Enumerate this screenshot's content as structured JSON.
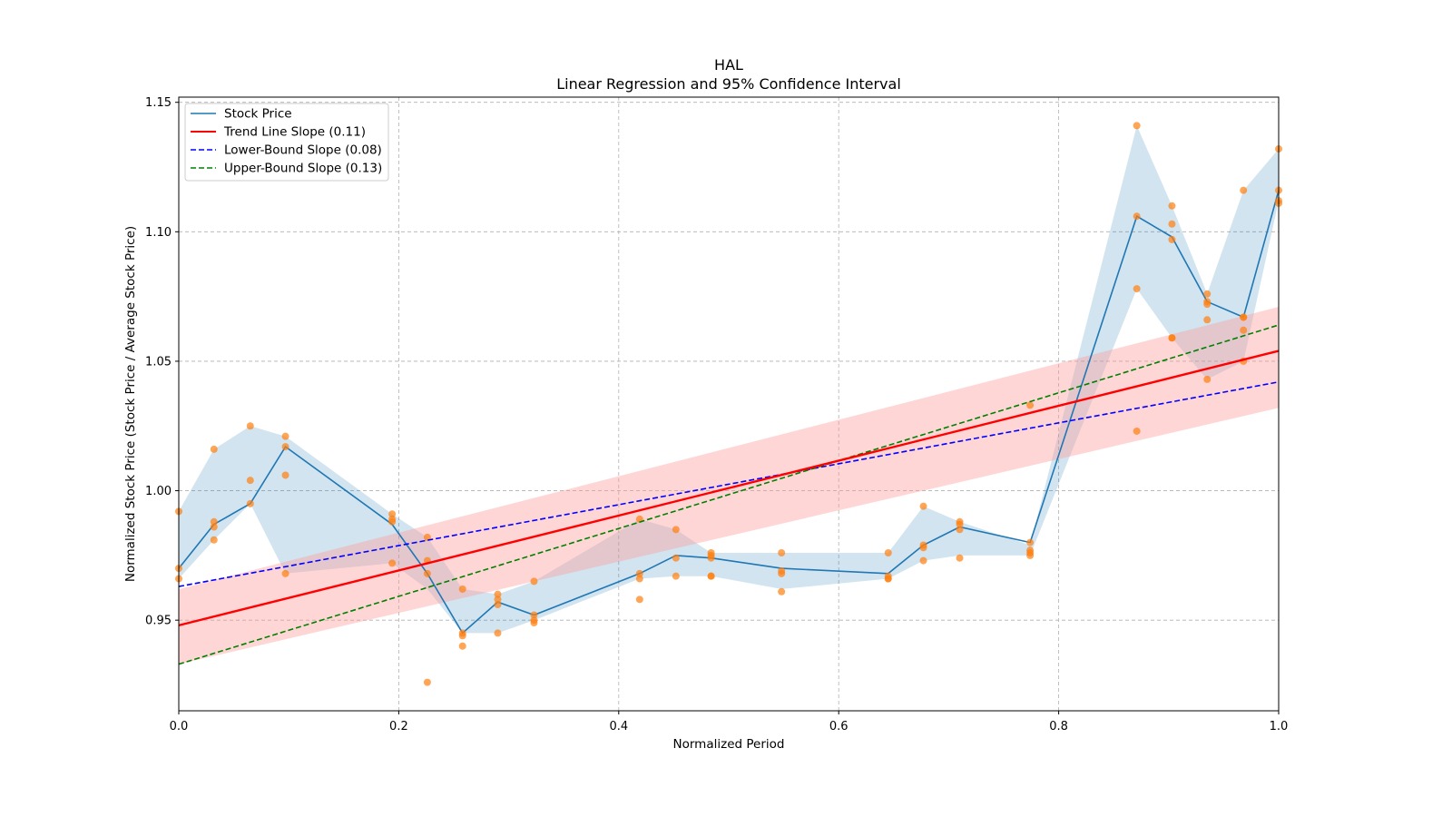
{
  "chart_data": {
    "type": "line",
    "title": "HAL",
    "subtitle": "Linear Regression and 95% Confidence Interval",
    "xlabel": "Normalized Period",
    "ylabel": "Normalized Stock Price (Stock Price / Average Stock Price)",
    "xlim": [
      0,
      1
    ],
    "ylim": [
      0.915,
      1.152
    ],
    "xticks": [
      0,
      0.2,
      0.4,
      0.6,
      0.8,
      1.0
    ],
    "xtick_labels": [
      "0.0",
      "0.2",
      "0.4",
      "0.6",
      "0.8",
      "1.0"
    ],
    "yticks": [
      0.95,
      1.0,
      1.05,
      1.1,
      1.15
    ],
    "ytick_labels": [
      "0.95",
      "1.00",
      "1.05",
      "1.10",
      "1.15"
    ],
    "grid": true,
    "legend_position": "top-left",
    "legend": [
      {
        "label": "Stock Price",
        "color": "#1f77b4",
        "style": "solid"
      },
      {
        "label": "Trend Line Slope (0.11)",
        "color": "#ff0000",
        "style": "solid"
      },
      {
        "label": "Lower-Bound Slope (0.08)",
        "color": "#0000ff",
        "style": "dashed"
      },
      {
        "label": "Upper-Bound Slope (0.13)",
        "color": "#008000",
        "style": "dashed"
      }
    ],
    "stock_price": {
      "x": [
        0.0,
        0.032,
        0.065,
        0.097,
        0.194,
        0.226,
        0.258,
        0.29,
        0.323,
        0.419,
        0.452,
        0.484,
        0.548,
        0.645,
        0.677,
        0.71,
        0.774,
        0.871,
        0.903,
        0.935,
        0.968,
        1.0
      ],
      "y": [
        0.97,
        0.987,
        0.995,
        1.017,
        0.987,
        0.968,
        0.945,
        0.957,
        0.952,
        0.968,
        0.975,
        0.974,
        0.97,
        0.968,
        0.979,
        0.986,
        0.98,
        1.106,
        1.098,
        1.073,
        1.067,
        1.116
      ],
      "band_lower": [
        0.966,
        0.981,
        0.995,
        0.968,
        0.972,
        0.962,
        0.945,
        0.945,
        0.95,
        0.966,
        0.967,
        0.967,
        0.962,
        0.966,
        0.973,
        0.975,
        0.975,
        1.078,
        1.059,
        1.043,
        1.05,
        1.112
      ],
      "band_upper": [
        0.992,
        1.016,
        1.025,
        1.021,
        0.991,
        0.982,
        0.962,
        0.96,
        0.965,
        0.989,
        0.985,
        0.976,
        0.976,
        0.976,
        0.994,
        0.988,
        0.979,
        1.141,
        1.11,
        1.076,
        1.116,
        1.132
      ],
      "color": "#1f77b4",
      "band_color": "#1f77b4"
    },
    "observations": {
      "x": [
        0.0,
        0.0,
        0.0,
        0.032,
        0.032,
        0.032,
        0.032,
        0.065,
        0.065,
        0.065,
        0.097,
        0.097,
        0.097,
        0.097,
        0.194,
        0.194,
        0.194,
        0.194,
        0.226,
        0.226,
        0.226,
        0.226,
        0.258,
        0.258,
        0.258,
        0.258,
        0.29,
        0.29,
        0.29,
        0.29,
        0.323,
        0.323,
        0.323,
        0.323,
        0.419,
        0.419,
        0.419,
        0.419,
        0.452,
        0.452,
        0.452,
        0.484,
        0.484,
        0.484,
        0.484,
        0.484,
        0.548,
        0.548,
        0.548,
        0.548,
        0.645,
        0.645,
        0.645,
        0.645,
        0.677,
        0.677,
        0.677,
        0.677,
        0.71,
        0.71,
        0.71,
        0.71,
        0.774,
        0.774,
        0.774,
        0.774,
        0.774,
        0.871,
        0.871,
        0.871,
        0.871,
        0.903,
        0.903,
        0.903,
        0.903,
        0.903,
        0.935,
        0.935,
        0.935,
        0.935,
        0.935,
        0.968,
        0.968,
        0.968,
        0.968,
        0.968,
        1.0,
        1.0,
        1.0,
        1.0
      ],
      "y": [
        0.992,
        0.97,
        0.966,
        1.016,
        0.988,
        0.986,
        0.981,
        1.025,
        1.004,
        0.995,
        1.021,
        1.017,
        1.006,
        0.968,
        0.991,
        0.989,
        0.988,
        0.972,
        0.982,
        0.973,
        0.968,
        0.926,
        0.962,
        0.945,
        0.944,
        0.94,
        0.96,
        0.958,
        0.956,
        0.945,
        0.965,
        0.952,
        0.95,
        0.949,
        0.989,
        0.968,
        0.966,
        0.958,
        0.985,
        0.974,
        0.967,
        0.976,
        0.975,
        0.974,
        0.967,
        0.967,
        0.976,
        0.969,
        0.968,
        0.961,
        0.976,
        0.967,
        0.966,
        0.966,
        0.994,
        0.979,
        0.978,
        0.973,
        0.988,
        0.987,
        0.985,
        0.974,
        1.033,
        0.98,
        0.977,
        0.976,
        0.975,
        1.141,
        1.106,
        1.078,
        1.023,
        1.11,
        1.103,
        1.097,
        1.059,
        1.059,
        1.076,
        1.073,
        1.072,
        1.066,
        1.043,
        1.116,
        1.067,
        1.067,
        1.062,
        1.05,
        1.132,
        1.116,
        1.112,
        1.111
      ],
      "color": "#ff7f0e"
    },
    "trend_line": {
      "x": [
        0,
        1
      ],
      "y": [
        0.948,
        1.054
      ],
      "color": "#ff0000"
    },
    "trend_band": {
      "x": [
        0,
        1
      ],
      "lower": [
        0.933,
        1.032
      ],
      "upper": [
        0.962,
        1.071
      ],
      "color": "#ff9999"
    },
    "lower_bound_line": {
      "x": [
        0,
        1
      ],
      "y": [
        0.963,
        1.042
      ],
      "color": "#0000ff"
    },
    "upper_bound_line": {
      "x": [
        0,
        1
      ],
      "y": [
        0.933,
        1.064
      ],
      "color": "#008000"
    }
  }
}
